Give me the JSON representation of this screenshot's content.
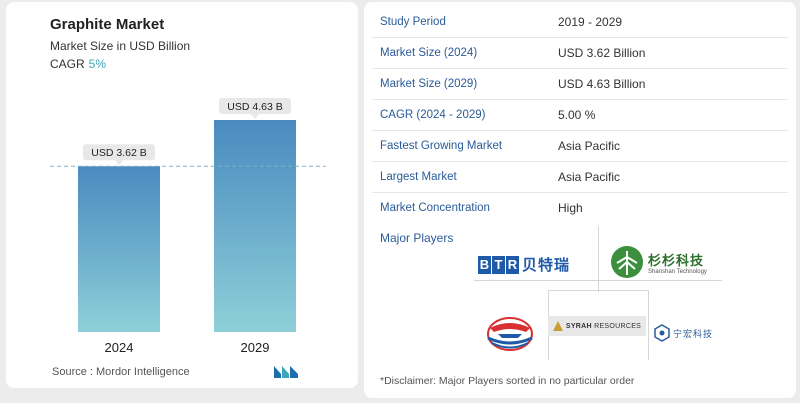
{
  "header": {
    "title": "Graphite Market",
    "subtitle": "Market Size in USD Billion",
    "cagr_label": "CAGR",
    "cagr_value": "5%"
  },
  "chart_data": {
    "type": "bar",
    "categories": [
      "2024",
      "2029"
    ],
    "values": [
      3.62,
      4.63
    ],
    "value_labels": [
      "USD 3.62 B",
      "USD 4.63 B"
    ],
    "title": "Graphite Market",
    "ylabel": "Market Size in USD Billion",
    "ylim": [
      0,
      4.63
    ],
    "grid": false,
    "reference_line": 3.62,
    "bar_colors": [
      "#4a8ac0",
      "#8ed0d8"
    ]
  },
  "source_text": "Source : Mordor Intelligence",
  "stats": [
    {
      "label": "Study Period",
      "value": "2019 - 2029"
    },
    {
      "label": "Market Size (2024)",
      "value": "USD 3.62 Billion"
    },
    {
      "label": "Market Size (2029)",
      "value": "USD 4.63 Billion"
    },
    {
      "label": "CAGR (2024 - 2029)",
      "value": "5.00 %"
    },
    {
      "label": "Fastest Growing Market",
      "value": "Asia Pacific"
    },
    {
      "label": "Largest Market",
      "value": "Asia Pacific"
    },
    {
      "label": "Market Concentration",
      "value": "High"
    }
  ],
  "players": {
    "title": "Major Players",
    "btr_letters": [
      "B",
      "T",
      "R"
    ],
    "btr_cn": "贝特瑞",
    "shanshan_cn": "杉杉科技",
    "shanshan_en": "Shanshan Technology",
    "syrah_bold": "SYRAH",
    "syrah_rest": " RESOURCES",
    "cn4": "宁宏科技"
  },
  "disclaimer": "*Disclaimer: Major Players sorted in no particular order",
  "colors": {
    "accent": "#3aa6b9",
    "label_blue": "#2a5b99"
  }
}
